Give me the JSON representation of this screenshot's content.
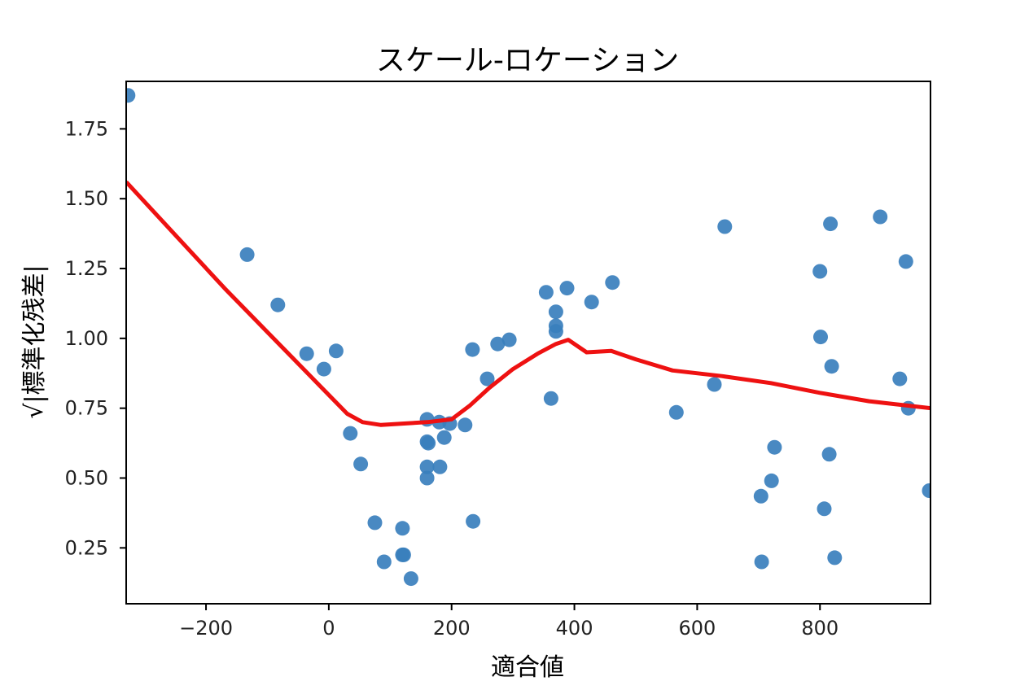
{
  "chart_data": {
    "type": "scatter",
    "title": "スケール-ロケーション",
    "xlabel": "適合値",
    "ylabel": "√|標準化残差|",
    "xlim": [
      -330,
      980
    ],
    "ylim": [
      0.05,
      1.92
    ],
    "xticks": [
      -200,
      0,
      200,
      400,
      600,
      800
    ],
    "xtick_labels": [
      "−200",
      "0",
      "200",
      "400",
      "600",
      "800"
    ],
    "yticks": [
      0.25,
      0.5,
      0.75,
      1.0,
      1.25,
      1.5,
      1.75
    ],
    "ytick_labels": [
      "0.25",
      "0.50",
      "0.75",
      "1.00",
      "1.25",
      "1.50",
      "1.75"
    ],
    "grid": false,
    "colors": {
      "points": "#3a7fbd",
      "line": "#ee1111",
      "axes": "#000000"
    },
    "series": [
      {
        "type": "scatter",
        "points": [
          [
            -327,
            1.87
          ],
          [
            -133,
            1.3
          ],
          [
            -83,
            1.12
          ],
          [
            -36,
            0.945
          ],
          [
            -8,
            0.89
          ],
          [
            12,
            0.955
          ],
          [
            35,
            0.66
          ],
          [
            52,
            0.55
          ],
          [
            75,
            0.34
          ],
          [
            90,
            0.2
          ],
          [
            120,
            0.32
          ],
          [
            120,
            0.225
          ],
          [
            122,
            0.225
          ],
          [
            134,
            0.14
          ],
          [
            160,
            0.71
          ],
          [
            160,
            0.63
          ],
          [
            160,
            0.54
          ],
          [
            160,
            0.5
          ],
          [
            162,
            0.625
          ],
          [
            180,
            0.7
          ],
          [
            181,
            0.54
          ],
          [
            188,
            0.645
          ],
          [
            197,
            0.695
          ],
          [
            222,
            0.69
          ],
          [
            234,
            0.96
          ],
          [
            235,
            0.345
          ],
          [
            258,
            0.855
          ],
          [
            275,
            0.98
          ],
          [
            294,
            0.995
          ],
          [
            354,
            1.165
          ],
          [
            362,
            0.785
          ],
          [
            370,
            1.095
          ],
          [
            370,
            1.045
          ],
          [
            370,
            1.025
          ],
          [
            388,
            1.18
          ],
          [
            428,
            1.13
          ],
          [
            462,
            1.2
          ],
          [
            566,
            0.735
          ],
          [
            628,
            0.835
          ],
          [
            645,
            1.4
          ],
          [
            704,
            0.435
          ],
          [
            705,
            0.2
          ],
          [
            721,
            0.49
          ],
          [
            726,
            0.61
          ],
          [
            800,
            1.24
          ],
          [
            801,
            1.005
          ],
          [
            807,
            0.39
          ],
          [
            815,
            0.585
          ],
          [
            817,
            1.41
          ],
          [
            819,
            0.9
          ],
          [
            824,
            0.215
          ],
          [
            898,
            1.435
          ],
          [
            930,
            0.855
          ],
          [
            940,
            1.275
          ],
          [
            944,
            0.75
          ],
          [
            978,
            0.455
          ]
        ]
      },
      {
        "type": "line",
        "x": [
          -330,
          -250,
          -170,
          -90,
          -10,
          30,
          55,
          85,
          120,
          160,
          200,
          230,
          260,
          300,
          340,
          370,
          390,
          420,
          460,
          500,
          560,
          640,
          720,
          800,
          880,
          980
        ],
        "y": [
          1.56,
          1.37,
          1.18,
          1.0,
          0.82,
          0.73,
          0.7,
          0.69,
          0.695,
          0.7,
          0.71,
          0.76,
          0.82,
          0.89,
          0.945,
          0.98,
          0.995,
          0.95,
          0.955,
          0.925,
          0.885,
          0.865,
          0.84,
          0.805,
          0.775,
          0.75
        ]
      }
    ]
  }
}
